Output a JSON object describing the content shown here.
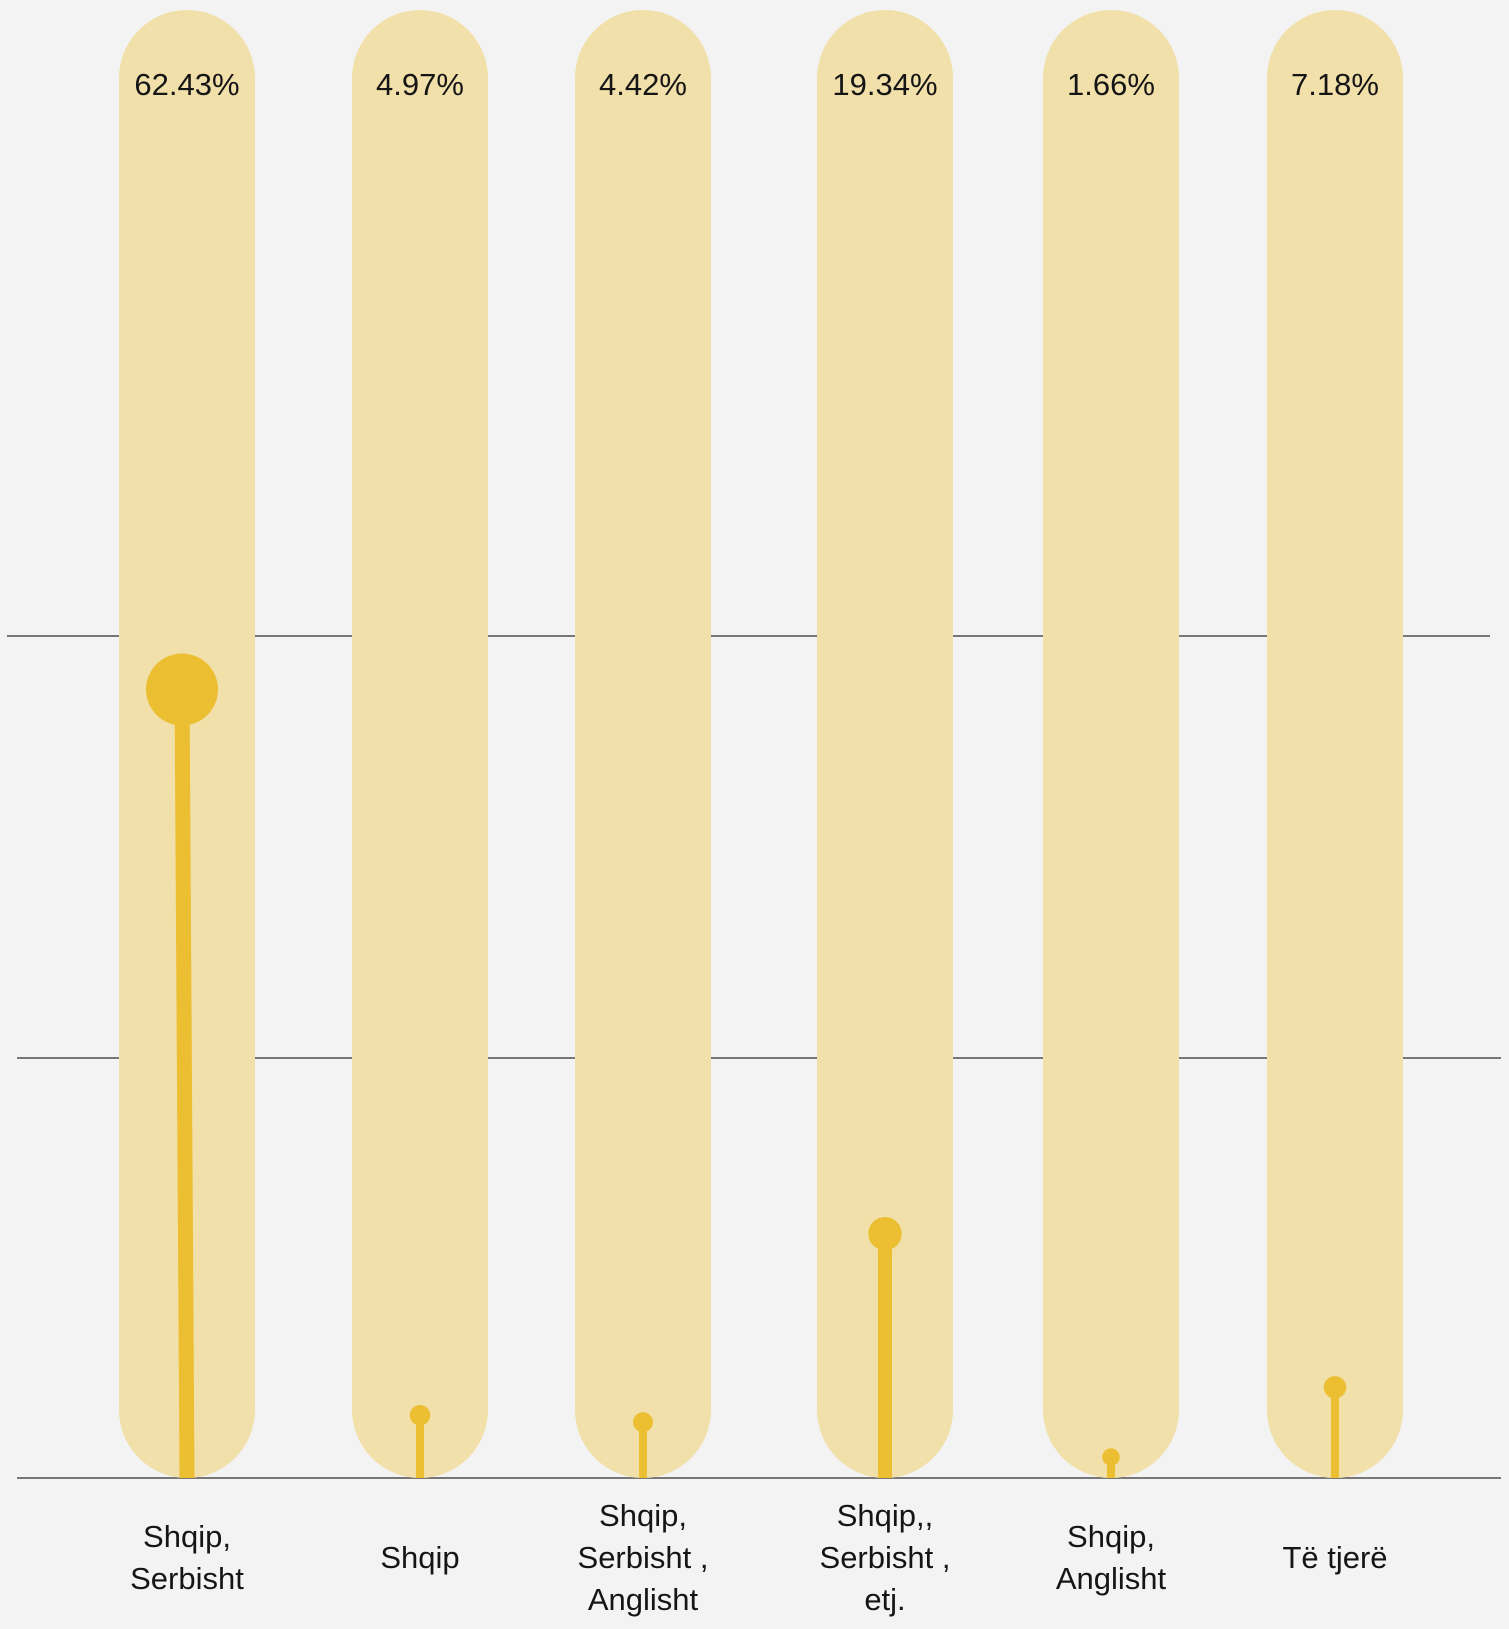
{
  "chart_data": {
    "type": "bar",
    "title": "",
    "xlabel": "",
    "ylabel": "",
    "ylim": [
      0,
      100
    ],
    "grid": true,
    "categories": [
      [
        "Shqip,",
        "Serbisht"
      ],
      [
        "Shqip"
      ],
      [
        "Shqip,",
        "Serbisht ,",
        "Anglisht"
      ],
      [
        "Shqip,,",
        "Serbisht ,",
        "etj."
      ],
      [
        "Shqip,",
        "Anglisht"
      ],
      [
        "Të tjerë"
      ]
    ],
    "values": [
      62.43,
      4.97,
      4.42,
      19.34,
      1.66,
      7.18
    ],
    "value_labels": [
      "62.43%",
      "4.97%",
      "4.42%",
      "19.34%",
      "1.66%",
      "7.18%"
    ],
    "colors": {
      "background": "#f3f3f3",
      "track": "#f2e0ab",
      "accent": "#ecbe31",
      "grid": "#777777",
      "text": "#151515"
    }
  }
}
